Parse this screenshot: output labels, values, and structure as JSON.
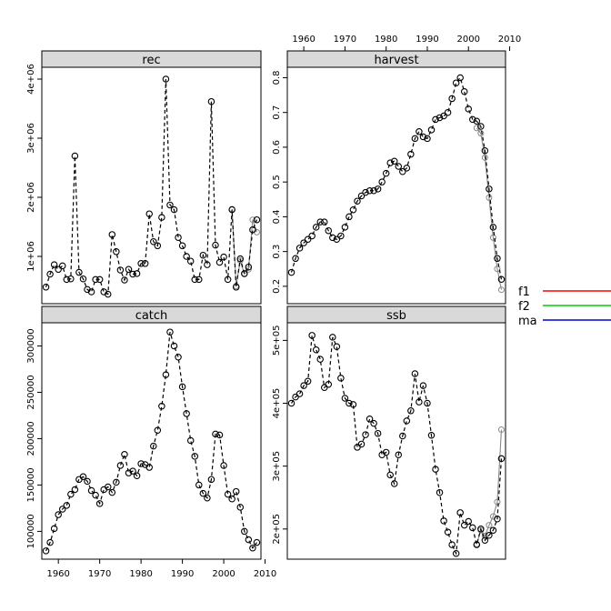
{
  "chart_data": {
    "type": "line",
    "layout": "2x2 trellis panels, shared x axis",
    "x_ticks": [
      1960,
      1970,
      1980,
      1990,
      2000,
      2010
    ],
    "xlim": [
      1956,
      2009
    ],
    "legend": {
      "placement": "right",
      "entries": [
        {
          "name": "f1",
          "color": "#ff0000"
        },
        {
          "name": "f2",
          "color": "#00cc00"
        },
        {
          "name": "ma",
          "color": "#0000cc"
        }
      ]
    },
    "panels": [
      {
        "title": "rec",
        "position": "top-left",
        "ylim": [
          200000,
          4200000
        ],
        "y_ticks": [
          1000000,
          2000000,
          3000000,
          4000000
        ],
        "y_tick_labels": [
          "1e+06",
          "2e+06",
          "3e+06",
          "4e+06"
        ],
        "x": [
          1957,
          1958,
          1959,
          1960,
          1961,
          1962,
          1963,
          1964,
          1965,
          1966,
          1967,
          1968,
          1969,
          1970,
          1971,
          1972,
          1973,
          1974,
          1975,
          1976,
          1977,
          1978,
          1979,
          1980,
          1981,
          1982,
          1983,
          1984,
          1985,
          1986,
          1987,
          1988,
          1989,
          1990,
          1991,
          1992,
          1993,
          1994,
          1995,
          1996,
          1997,
          1998,
          1999,
          2000,
          2001,
          2002,
          2003,
          2004,
          2005,
          2006,
          2007,
          2008
        ],
        "values": [
          480000,
          700000,
          860000,
          780000,
          840000,
          610000,
          620000,
          2700000,
          730000,
          620000,
          440000,
          400000,
          610000,
          610000,
          400000,
          360000,
          1370000,
          1080000,
          770000,
          600000,
          780000,
          700000,
          710000,
          880000,
          880000,
          1720000,
          1250000,
          1180000,
          1660000,
          4000000,
          1870000,
          1790000,
          1320000,
          1180000,
          1000000,
          920000,
          610000,
          610000,
          1020000,
          860000,
          3620000,
          1190000,
          900000,
          990000,
          610000,
          1790000,
          480000,
          960000,
          710000,
          820000,
          1450000,
          1620000
        ],
        "series2_tail": {
          "x": [
            2002,
            2003,
            2004,
            2005,
            2006,
            2007,
            2008
          ],
          "values": [
            1800000,
            500000,
            930000,
            700000,
            780000,
            1620000,
            1410000
          ]
        }
      },
      {
        "title": "harvest",
        "position": "top-right",
        "ylim": [
          0.15,
          0.83
        ],
        "y_ticks": [
          0.2,
          0.3,
          0.4,
          0.5,
          0.6,
          0.7,
          0.8
        ],
        "y_tick_labels": [
          "0.2",
          "0.3",
          "0.4",
          "0.5",
          "0.6",
          "0.7",
          "0.8"
        ],
        "x": [
          1957,
          1958,
          1959,
          1960,
          1961,
          1962,
          1963,
          1964,
          1965,
          1966,
          1967,
          1968,
          1969,
          1970,
          1971,
          1972,
          1973,
          1974,
          1975,
          1976,
          1977,
          1978,
          1979,
          1980,
          1981,
          1982,
          1983,
          1984,
          1985,
          1986,
          1987,
          1988,
          1989,
          1990,
          1991,
          1992,
          1993,
          1994,
          1995,
          1996,
          1997,
          1998,
          1999,
          2000,
          2001,
          2002,
          2003,
          2004,
          2005,
          2006,
          2007,
          2008
        ],
        "values": [
          0.24,
          0.28,
          0.31,
          0.325,
          0.335,
          0.345,
          0.37,
          0.385,
          0.385,
          0.36,
          0.34,
          0.335,
          0.345,
          0.37,
          0.4,
          0.42,
          0.445,
          0.46,
          0.47,
          0.475,
          0.475,
          0.48,
          0.5,
          0.525,
          0.555,
          0.56,
          0.545,
          0.53,
          0.54,
          0.58,
          0.625,
          0.645,
          0.63,
          0.625,
          0.65,
          0.68,
          0.685,
          0.69,
          0.7,
          0.74,
          0.785,
          0.8,
          0.76,
          0.71,
          0.68,
          0.675,
          0.66,
          0.59,
          0.48,
          0.37,
          0.28,
          0.22
        ],
        "series2_tail": {
          "x": [
            2002,
            2003,
            2004,
            2005,
            2006,
            2007,
            2008
          ],
          "values": [
            0.655,
            0.64,
            0.57,
            0.455,
            0.34,
            0.25,
            0.19
          ]
        }
      },
      {
        "title": "catch",
        "position": "bottom-left",
        "ylim": [
          70000,
          325000
        ],
        "y_ticks": [
          100000,
          150000,
          200000,
          250000,
          300000
        ],
        "y_tick_labels": [
          "100000",
          "150000",
          "200000",
          "250000",
          "300000"
        ],
        "x": [
          1957,
          1958,
          1959,
          1960,
          1961,
          1962,
          1963,
          1964,
          1965,
          1966,
          1967,
          1968,
          1969,
          1970,
          1971,
          1972,
          1973,
          1974,
          1975,
          1976,
          1977,
          1978,
          1979,
          1980,
          1981,
          1982,
          1983,
          1984,
          1985,
          1986,
          1987,
          1988,
          1989,
          1990,
          1991,
          1992,
          1993,
          1994,
          1995,
          1996,
          1997,
          1998,
          1999,
          2000,
          2001,
          2002,
          2003,
          2004,
          2005,
          2006,
          2007,
          2008
        ],
        "values": [
          79000,
          88000,
          103000,
          118000,
          124000,
          128000,
          140000,
          145000,
          156000,
          159000,
          154000,
          144000,
          139000,
          130000,
          145000,
          148000,
          142000,
          153000,
          171000,
          183000,
          163000,
          165000,
          160000,
          173000,
          172000,
          169000,
          192000,
          209000,
          235000,
          269000,
          315000,
          300000,
          288000,
          256000,
          227000,
          198000,
          181000,
          150000,
          141000,
          136000,
          156000,
          205000,
          204000,
          171000,
          140000,
          135000,
          143000,
          126000,
          100000,
          91000,
          82000,
          88000
        ]
      },
      {
        "title": "ssb",
        "position": "bottom-right",
        "ylim": [
          152000,
          528000
        ],
        "y_ticks": [
          200000,
          300000,
          400000,
          500000
        ],
        "y_tick_labels": [
          "2e+05",
          "3e+05",
          "4e+05",
          "5e+05"
        ],
        "x": [
          1957,
          1958,
          1959,
          1960,
          1961,
          1962,
          1963,
          1964,
          1965,
          1966,
          1967,
          1968,
          1969,
          1970,
          1971,
          1972,
          1973,
          1974,
          1975,
          1976,
          1977,
          1978,
          1979,
          1980,
          1981,
          1982,
          1983,
          1984,
          1985,
          1986,
          1987,
          1988,
          1989,
          1990,
          1991,
          1992,
          1993,
          1994,
          1995,
          1996,
          1997,
          1998,
          1999,
          2000,
          2001,
          2002,
          2003,
          2004,
          2005,
          2006,
          2007,
          2008
        ],
        "values": [
          400000,
          410000,
          415000,
          428000,
          435000,
          508000,
          485000,
          470000,
          425000,
          430000,
          505000,
          490000,
          440000,
          408000,
          400000,
          398000,
          330000,
          335000,
          350000,
          375000,
          368000,
          352000,
          318000,
          322000,
          286000,
          272000,
          318000,
          348000,
          372000,
          388000,
          447000,
          402000,
          428000,
          400000,
          349000,
          295000,
          258000,
          213000,
          195000,
          175000,
          161000,
          226000,
          206000,
          212000,
          202000,
          175000,
          200000,
          182000,
          190000,
          198000,
          216000,
          312000
        ],
        "series2_tail": {
          "x": [
            2002,
            2003,
            2004,
            2005,
            2006,
            2007,
            2008
          ],
          "values": [
            176000,
            198000,
            189000,
            206000,
            220000,
            243000,
            358000
          ]
        }
      }
    ]
  }
}
